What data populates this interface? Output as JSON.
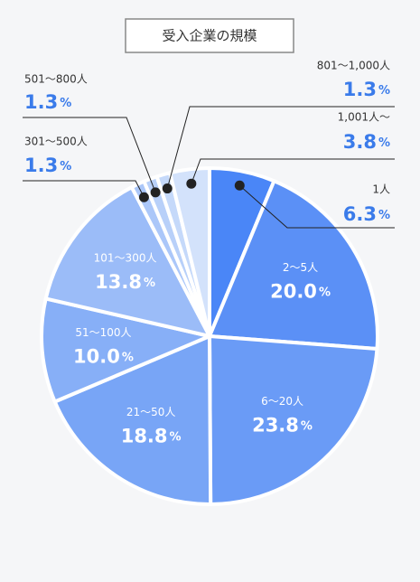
{
  "chart_data": {
    "type": "pie",
    "title": "受入企業の規模",
    "categories": [
      "1人",
      "2～5人",
      "6～20人",
      "21～50人",
      "51～100人",
      "101～300人",
      "301～500人",
      "501～800人",
      "801～1,000人",
      "1,001人～"
    ],
    "values": [
      6.3,
      20.0,
      23.8,
      18.8,
      10.0,
      13.8,
      1.3,
      1.3,
      1.3,
      3.8
    ],
    "value_labels": [
      "6.3%",
      "20.0%",
      "23.8%",
      "18.8%",
      "10.0%",
      "13.8%",
      "1.3%",
      "1.3%",
      "1.3%",
      "3.8%"
    ],
    "colors": [
      "#4a86f7",
      "#5b90f6",
      "#6a9bf6",
      "#78a5f6",
      "#87aff7",
      "#9bbcf8",
      "#abc7f9",
      "#b8d0f9",
      "#c5d9fa",
      "#d3e2fb"
    ]
  }
}
